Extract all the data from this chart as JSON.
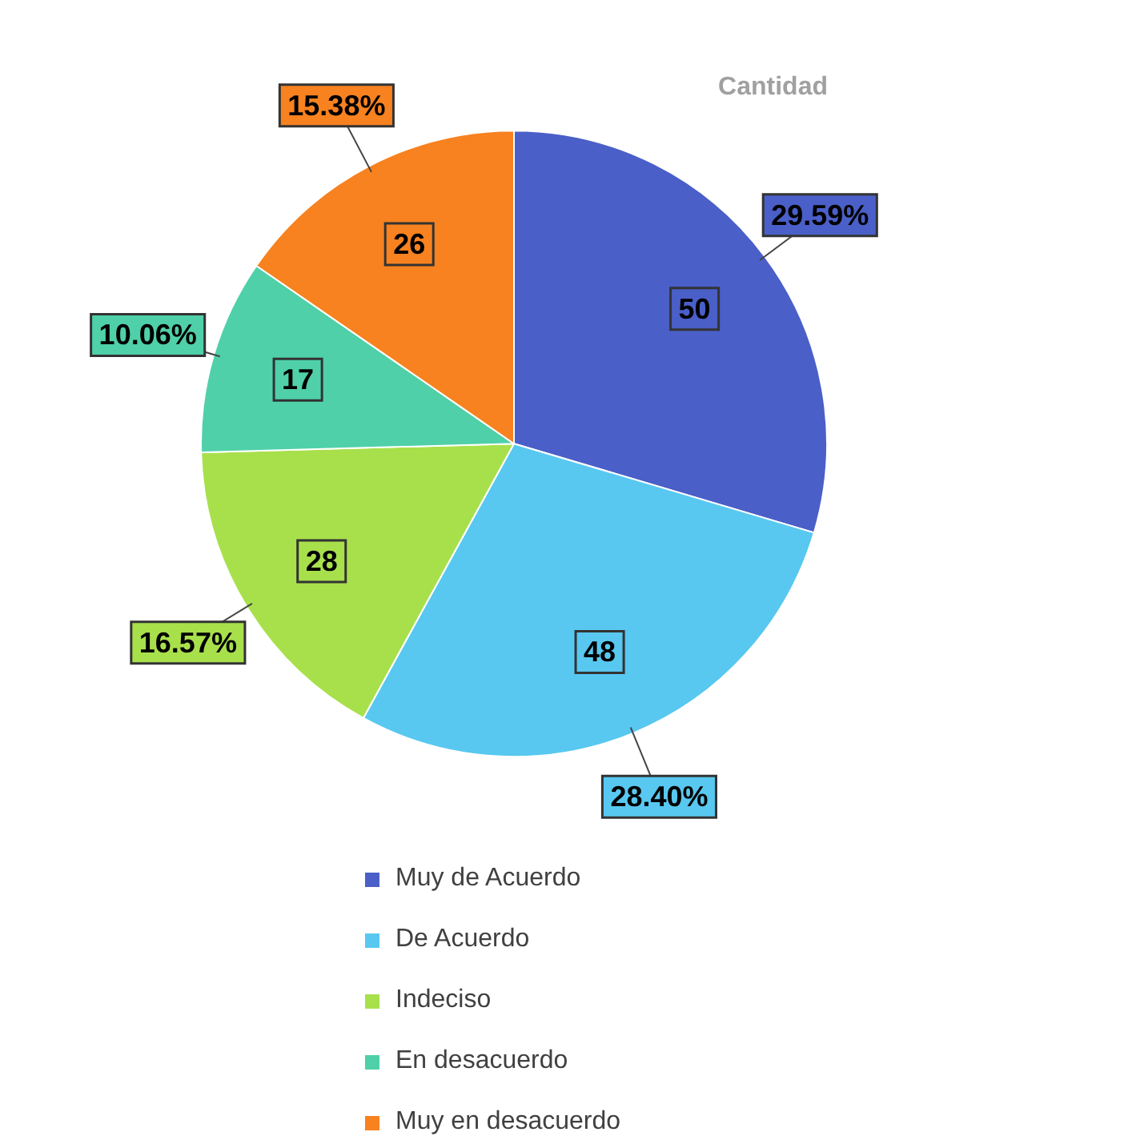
{
  "chart_data": {
    "type": "pie",
    "title": "Cantidad",
    "categories": [
      "Muy de Acuerdo",
      "De Acuerdo",
      "Indeciso",
      "En desacuerdo",
      "Muy en desacuerdo"
    ],
    "values": [
      29.59,
      28.4,
      16.57,
      10.06,
      15.38
    ],
    "colors": [
      "#4a5fc8",
      "#58c8f0",
      "#a8e04c",
      "#4fd0a8",
      "#f7821f"
    ],
    "value_labels": [
      "29.59%",
      "28.40%",
      "16.57%",
      "10.06%",
      "15.38%"
    ],
    "annotations": [
      {
        "text": "50",
        "x": "Muy de Acuerdo"
      },
      {
        "text": "48",
        "x": "De Acuerdo"
      },
      {
        "text": "28",
        "x": "Indeciso"
      },
      {
        "text": "17",
        "x": "En desacuerdo"
      },
      {
        "text": "26",
        "x": "Muy en desacuerdo"
      }
    ],
    "legend": "bottom"
  }
}
